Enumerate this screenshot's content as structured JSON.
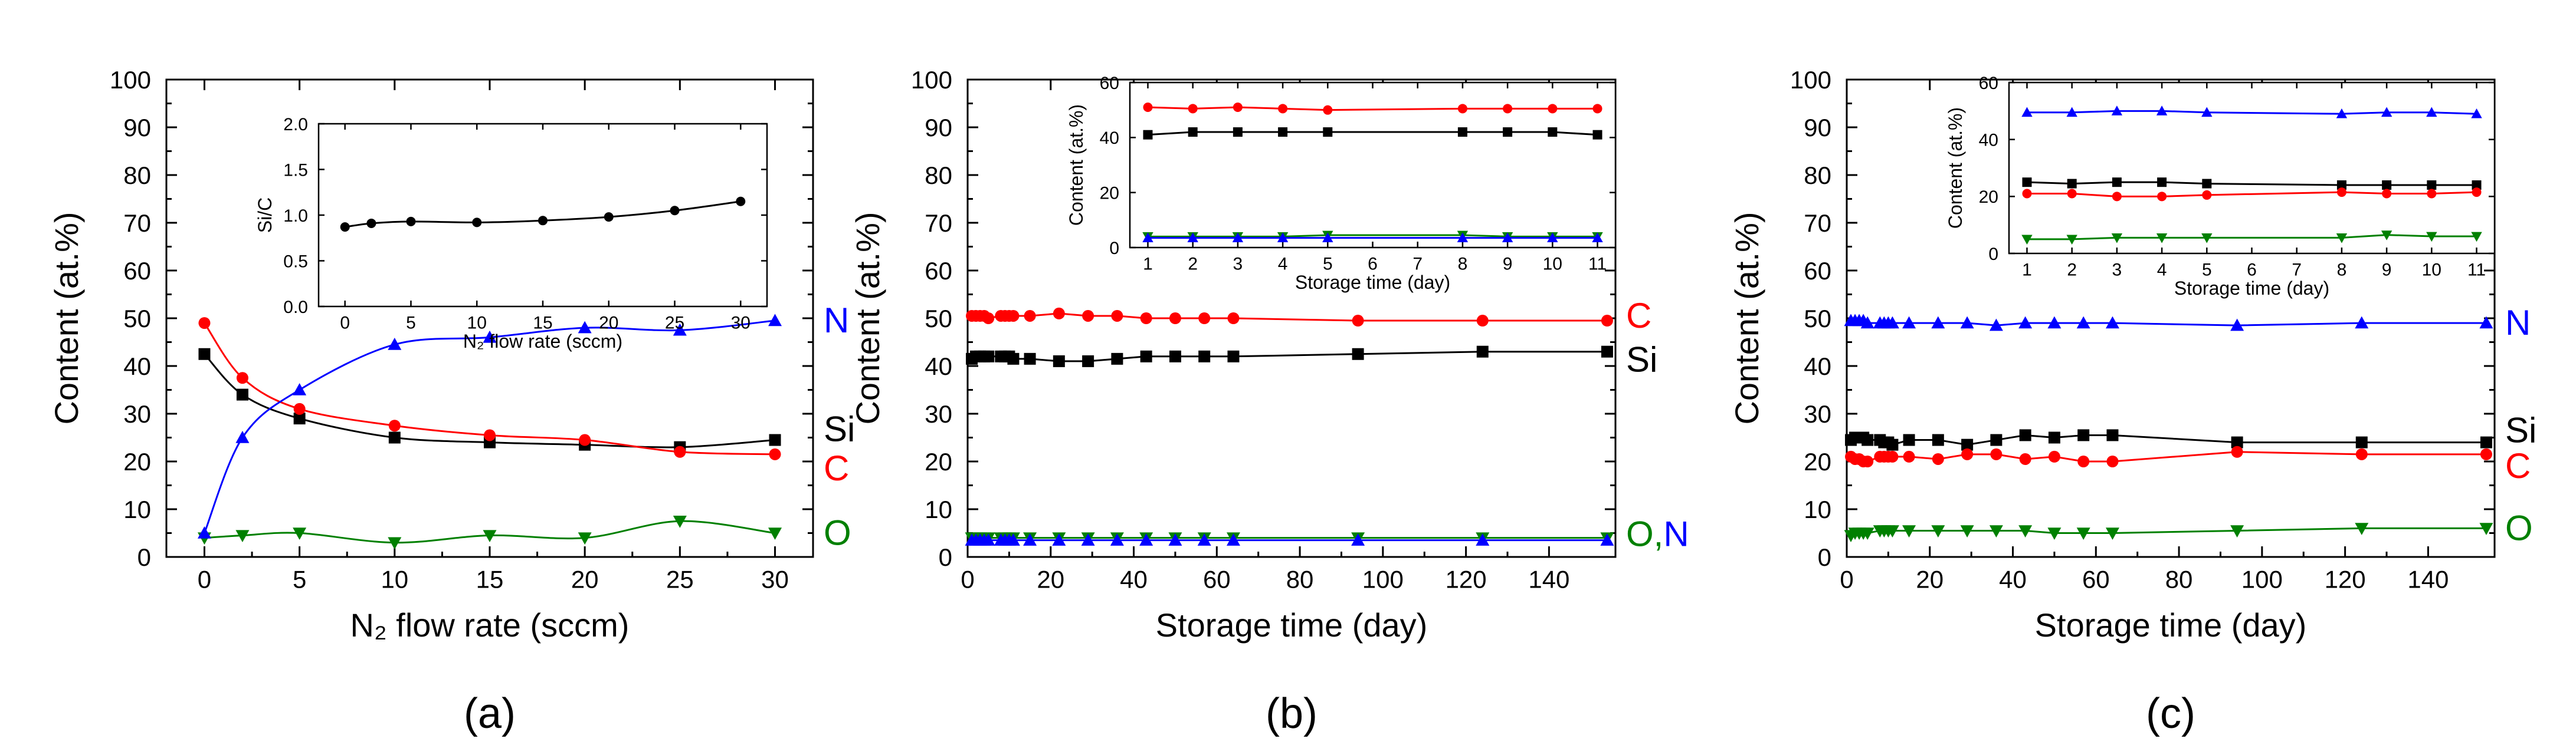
{
  "chart_data": [
    {
      "panel_label": "(a)",
      "type": "line",
      "xlabel": "N₂ flow rate (sccm)",
      "ylabel": "Content (at.%)",
      "xlim": [
        -2,
        32
      ],
      "ylim": [
        0,
        100
      ],
      "xticks": [
        0,
        5,
        10,
        15,
        20,
        25,
        30
      ],
      "yticks": [
        0,
        10,
        20,
        30,
        40,
        50,
        60,
        70,
        80,
        90,
        100
      ],
      "colors": {
        "Si": "#000000",
        "C": "#ff0000",
        "O": "#008000",
        "N": "#0000ff"
      },
      "series": [
        {
          "name": "Si",
          "marker": "square",
          "color": "#000000",
          "x": [
            0,
            2,
            5,
            10,
            15,
            20,
            25,
            30
          ],
          "y": [
            42.5,
            34,
            29,
            25,
            24,
            23.5,
            23,
            24.5
          ]
        },
        {
          "name": "C",
          "marker": "circle",
          "color": "#ff0000",
          "x": [
            0,
            2,
            5,
            10,
            15,
            20,
            25,
            30
          ],
          "y": [
            49,
            37.5,
            31,
            27.5,
            25.5,
            24.5,
            22,
            21.5
          ]
        },
        {
          "name": "O",
          "marker": "triangle-down",
          "color": "#008000",
          "x": [
            0,
            2,
            5,
            10,
            15,
            20,
            25,
            30
          ],
          "y": [
            4,
            4.5,
            5,
            3,
            4.5,
            4,
            7.5,
            5
          ]
        },
        {
          "name": "N",
          "marker": "triangle-up",
          "color": "#0000ff",
          "x": [
            0,
            2,
            5,
            10,
            15,
            20,
            25,
            30
          ],
          "y": [
            5,
            25,
            35,
            44.5,
            46,
            48,
            47.5,
            49.5
          ]
        }
      ],
      "inset": {
        "xlabel": "N₂ flow rate (sccm)",
        "ylabel": "Si/C",
        "xlim": [
          -2,
          32
        ],
        "ylim": [
          0,
          2.0
        ],
        "xticks": [
          0,
          5,
          10,
          15,
          20,
          25,
          30
        ],
        "yticks": [
          "0.0",
          "0.5",
          "1.0",
          "1.5",
          "2.0"
        ],
        "series": [
          {
            "name": "Si/C",
            "marker": "circle",
            "color": "#000000",
            "x": [
              0,
              2,
              5,
              10,
              15,
              20,
              25,
              30
            ],
            "y": [
              0.87,
              0.91,
              0.93,
              0.92,
              0.94,
              0.98,
              1.05,
              1.15
            ]
          }
        ]
      }
    },
    {
      "panel_label": "(b)",
      "type": "line",
      "xlabel": "Storage time (day)",
      "ylabel": "Content (at.%)",
      "xlim": [
        0,
        156
      ],
      "ylim": [
        0,
        100
      ],
      "xticks": [
        0,
        20,
        40,
        60,
        80,
        100,
        120,
        140
      ],
      "yticks": [
        0,
        10,
        20,
        30,
        40,
        50,
        60,
        70,
        80,
        90,
        100
      ],
      "series_labels": [
        "C",
        "Si",
        "O,N"
      ],
      "series": [
        {
          "name": "C",
          "marker": "circle",
          "color": "#ff0000",
          "x": [
            1,
            2,
            3,
            4,
            5,
            8,
            9,
            10,
            11,
            15,
            22,
            29,
            36,
            43,
            50,
            57,
            64,
            94,
            124,
            154
          ],
          "y": [
            50.5,
            50.5,
            50.5,
            50.5,
            50,
            50.5,
            50.5,
            50.5,
            50.5,
            50.5,
            51,
            50.5,
            50.5,
            50,
            50,
            50,
            50,
            49.5,
            49.5,
            49.5
          ]
        },
        {
          "name": "Si",
          "marker": "square",
          "color": "#000000",
          "x": [
            1,
            2,
            3,
            4,
            5,
            8,
            9,
            10,
            11,
            15,
            22,
            29,
            36,
            43,
            50,
            57,
            64,
            94,
            124,
            154
          ],
          "y": [
            41.5,
            42,
            42,
            42,
            42,
            42,
            42,
            42,
            41.5,
            41.5,
            41,
            41,
            41.5,
            42,
            42,
            42,
            42,
            42.5,
            43,
            43
          ]
        },
        {
          "name": "O",
          "marker": "triangle-down",
          "color": "#008000",
          "x": [
            1,
            2,
            3,
            4,
            5,
            8,
            9,
            10,
            11,
            15,
            22,
            29,
            36,
            43,
            50,
            57,
            64,
            94,
            124,
            154
          ],
          "y": [
            4,
            4,
            4,
            4,
            4,
            4,
            4,
            4,
            4,
            4,
            4,
            4,
            4,
            4,
            4,
            4,
            4,
            4,
            4,
            4
          ]
        },
        {
          "name": "N",
          "marker": "triangle-up",
          "color": "#0000ff",
          "x": [
            1,
            2,
            3,
            4,
            5,
            8,
            9,
            10,
            11,
            15,
            22,
            29,
            36,
            43,
            50,
            57,
            64,
            94,
            124,
            154
          ],
          "y": [
            3.5,
            3.5,
            3.5,
            3.5,
            3.5,
            3.5,
            3.5,
            3.5,
            3.5,
            3.5,
            3.5,
            3.5,
            3.5,
            3.5,
            3.5,
            3.5,
            3.5,
            3.5,
            3.5,
            3.5
          ]
        }
      ],
      "inset": {
        "xlabel": "Storage time (day)",
        "ylabel": "Content (at.%)",
        "xlim": [
          0.6,
          11.4
        ],
        "ylim": [
          0,
          60
        ],
        "xticks": [
          1,
          2,
          3,
          4,
          5,
          6,
          7,
          8,
          9,
          10,
          11
        ],
        "yticks": [
          0,
          20,
          40,
          60
        ],
        "series": [
          {
            "name": "C",
            "marker": "circle",
            "color": "#ff0000",
            "x": [
              1,
              2,
              3,
              4,
              5,
              8,
              9,
              10,
              11
            ],
            "y": [
              51,
              50.5,
              51,
              50.5,
              50,
              50.5,
              50.5,
              50.5,
              50.5
            ]
          },
          {
            "name": "Si",
            "marker": "square",
            "color": "#000000",
            "x": [
              1,
              2,
              3,
              4,
              5,
              8,
              9,
              10,
              11
            ],
            "y": [
              41,
              42,
              42,
              42,
              42,
              42,
              42,
              42,
              41
            ]
          },
          {
            "name": "O",
            "marker": "triangle-down",
            "color": "#008000",
            "x": [
              1,
              2,
              3,
              4,
              5,
              8,
              9,
              10,
              11
            ],
            "y": [
              4,
              4,
              4,
              4,
              4.5,
              4.5,
              4,
              4,
              4
            ]
          },
          {
            "name": "N",
            "marker": "triangle-up",
            "color": "#0000ff",
            "x": [
              1,
              2,
              3,
              4,
              5,
              8,
              9,
              10,
              11
            ],
            "y": [
              3.5,
              3.5,
              3.5,
              3.5,
              3.5,
              3.5,
              3.5,
              3.5,
              3.5
            ]
          }
        ]
      }
    },
    {
      "panel_label": "(c)",
      "type": "line",
      "xlabel": "Storage time (day)",
      "ylabel": "Content (at.%)",
      "xlim": [
        0,
        156
      ],
      "ylim": [
        0,
        100
      ],
      "xticks": [
        0,
        20,
        40,
        60,
        80,
        100,
        120,
        140
      ],
      "yticks": [
        0,
        10,
        20,
        30,
        40,
        50,
        60,
        70,
        80,
        90,
        100
      ],
      "series_labels": [
        "N",
        "Si",
        "C",
        "O"
      ],
      "series": [
        {
          "name": "N",
          "marker": "triangle-up",
          "color": "#0000ff",
          "x": [
            1,
            2,
            3,
            4,
            5,
            8,
            9,
            10,
            11,
            15,
            22,
            29,
            36,
            43,
            50,
            57,
            64,
            94,
            124,
            154
          ],
          "y": [
            49.5,
            49.5,
            49.5,
            49.5,
            49,
            49,
            49,
            49,
            49,
            49,
            49,
            49,
            48.5,
            49,
            49,
            49,
            49,
            48.5,
            49,
            49
          ]
        },
        {
          "name": "Si",
          "marker": "square",
          "color": "#000000",
          "x": [
            1,
            2,
            3,
            4,
            5,
            8,
            9,
            10,
            11,
            15,
            22,
            29,
            36,
            43,
            50,
            57,
            64,
            94,
            124,
            154
          ],
          "y": [
            24.5,
            25,
            25,
            25,
            24.5,
            24.5,
            24,
            24,
            23.5,
            24.5,
            24.5,
            23.5,
            24.5,
            25.5,
            25,
            25.5,
            25.5,
            24,
            24,
            24
          ]
        },
        {
          "name": "C",
          "marker": "circle",
          "color": "#ff0000",
          "x": [
            1,
            2,
            3,
            4,
            5,
            8,
            9,
            10,
            11,
            15,
            22,
            29,
            36,
            43,
            50,
            57,
            64,
            94,
            124,
            154
          ],
          "y": [
            21,
            20.5,
            20.5,
            20,
            20,
            21,
            21,
            21,
            21,
            21,
            20.5,
            21.5,
            21.5,
            20.5,
            21,
            20,
            20,
            22,
            21.5,
            21.5
          ]
        },
        {
          "name": "O",
          "marker": "triangle-down",
          "color": "#008000",
          "x": [
            1,
            2,
            3,
            4,
            5,
            8,
            9,
            10,
            11,
            15,
            22,
            29,
            36,
            43,
            50,
            57,
            64,
            94,
            124,
            154
          ],
          "y": [
            4.5,
            5,
            5,
            5,
            5,
            5.5,
            5.5,
            5.5,
            5.5,
            5.5,
            5.5,
            5.5,
            5.5,
            5.5,
            5,
            5,
            5,
            5.5,
            6,
            6
          ]
        }
      ],
      "inset": {
        "xlabel": "Storage time (day)",
        "ylabel": "Content (at.%)",
        "xlim": [
          0.6,
          11.4
        ],
        "ylim": [
          0,
          60
        ],
        "xticks": [
          1,
          2,
          3,
          4,
          5,
          6,
          7,
          8,
          9,
          10,
          11
        ],
        "yticks": [
          0,
          20,
          40,
          60
        ],
        "series": [
          {
            "name": "N",
            "marker": "triangle-up",
            "color": "#0000ff",
            "x": [
              1,
              2,
              3,
              4,
              5,
              8,
              9,
              10,
              11
            ],
            "y": [
              49.5,
              49.5,
              50,
              50,
              49.5,
              49,
              49.5,
              49.5,
              49
            ]
          },
          {
            "name": "Si",
            "marker": "square",
            "color": "#000000",
            "x": [
              1,
              2,
              3,
              4,
              5,
              8,
              9,
              10,
              11
            ],
            "y": [
              25,
              24.5,
              25,
              25,
              24.5,
              24,
              24,
              24,
              24
            ]
          },
          {
            "name": "C",
            "marker": "circle",
            "color": "#ff0000",
            "x": [
              1,
              2,
              3,
              4,
              5,
              8,
              9,
              10,
              11
            ],
            "y": [
              21,
              21,
              20,
              20,
              20.5,
              21.5,
              21,
              21,
              21.5
            ]
          },
          {
            "name": "O",
            "marker": "triangle-down",
            "color": "#008000",
            "x": [
              1,
              2,
              3,
              4,
              5,
              8,
              9,
              10,
              11
            ],
            "y": [
              5,
              5,
              5.5,
              5.5,
              5.5,
              5.5,
              6.5,
              6,
              6
            ]
          }
        ]
      }
    }
  ]
}
